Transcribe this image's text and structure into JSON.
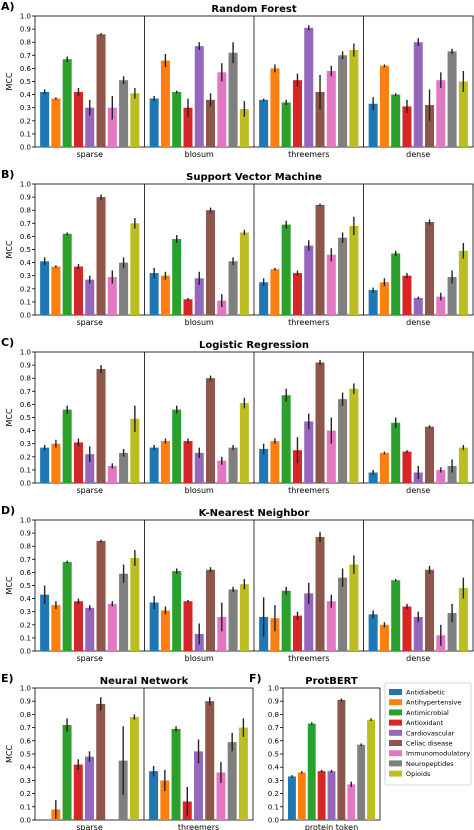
{
  "categories": [
    "Antidiabetic",
    "Antihypertensive",
    "Antimicrobial",
    "Antioxidant",
    "Cardiovascular",
    "Celiac disease",
    "Immunomodulatory",
    "Neuropeptides",
    "Opioids"
  ],
  "colors": [
    "#1f77b4",
    "#ff7f0e",
    "#2ca02c",
    "#d62728",
    "#9467bd",
    "#8c564b",
    "#e377c2",
    "#7f7f7f",
    "#bcbd22"
  ],
  "chart_data": [
    {
      "panel": "A)",
      "type": "bar",
      "title": "Random Forest",
      "ylabel": "MCC",
      "ylim": [
        0,
        1.0
      ],
      "yticks": [
        "0.0",
        "0.1",
        "0.2",
        "0.3",
        "0.4",
        "0.5",
        "0.6",
        "0.7",
        "0.8",
        "0.9",
        "1.0"
      ],
      "groups": [
        {
          "name": "sparse",
          "values": [
            0.42,
            0.37,
            0.67,
            0.42,
            0.3,
            0.86,
            0.3,
            0.51,
            0.41
          ],
          "err": [
            0.02,
            0.01,
            0.02,
            0.03,
            0.06,
            0.01,
            0.09,
            0.03,
            0.04
          ]
        },
        {
          "name": "blosum",
          "values": [
            0.37,
            0.66,
            0.42,
            0.3,
            0.77,
            0.36,
            0.57,
            0.72,
            0.29
          ],
          "err": [
            0.02,
            0.05,
            0.01,
            0.07,
            0.03,
            0.05,
            0.07,
            0.08,
            0.06
          ]
        },
        {
          "name": "threemers",
          "values": [
            0.36,
            0.6,
            0.34,
            0.51,
            0.91,
            0.42,
            0.58,
            0.7,
            0.74
          ],
          "err": [
            0.01,
            0.03,
            0.02,
            0.05,
            0.02,
            0.13,
            0.04,
            0.03,
            0.05
          ]
        },
        {
          "name": "dense",
          "values": [
            0.33,
            0.62,
            0.4,
            0.31,
            0.8,
            0.32,
            0.51,
            0.73,
            0.5
          ],
          "err": [
            0.05,
            0.01,
            0.01,
            0.05,
            0.03,
            0.12,
            0.06,
            0.02,
            0.08
          ]
        }
      ]
    },
    {
      "panel": "B)",
      "type": "bar",
      "title": "Support Vector Machine",
      "ylabel": "MCC",
      "ylim": [
        0,
        1.0
      ],
      "yticks": [
        "0.0",
        "0.1",
        "0.2",
        "0.3",
        "0.4",
        "0.5",
        "0.6",
        "0.7",
        "0.8",
        "0.9",
        "1.0"
      ],
      "groups": [
        {
          "name": "sparse",
          "values": [
            0.41,
            0.37,
            0.62,
            0.37,
            0.27,
            0.9,
            0.29,
            0.4,
            0.7
          ],
          "err": [
            0.03,
            0.01,
            0.01,
            0.02,
            0.03,
            0.02,
            0.05,
            0.04,
            0.04
          ]
        },
        {
          "name": "blosum",
          "values": [
            0.32,
            0.3,
            0.58,
            0.12,
            0.28,
            0.8,
            0.11,
            0.41,
            0.63
          ],
          "err": [
            0.04,
            0.03,
            0.03,
            0.01,
            0.05,
            0.02,
            0.05,
            0.03,
            0.02
          ]
        },
        {
          "name": "threemers",
          "values": [
            0.25,
            0.35,
            0.69,
            0.32,
            0.53,
            0.84,
            0.46,
            0.59,
            0.68
          ],
          "err": [
            0.03,
            0.01,
            0.03,
            0.02,
            0.04,
            0.01,
            0.05,
            0.04,
            0.07
          ]
        },
        {
          "name": "dense",
          "values": [
            0.19,
            0.25,
            0.47,
            0.3,
            0.13,
            0.71,
            0.14,
            0.29,
            0.49
          ],
          "err": [
            0.02,
            0.03,
            0.02,
            0.02,
            0.01,
            0.02,
            0.03,
            0.05,
            0.06
          ]
        }
      ]
    },
    {
      "panel": "C)",
      "type": "bar",
      "title": "Logistic Regression",
      "ylabel": "MCC",
      "ylim": [
        0,
        1.0
      ],
      "yticks": [
        "0.0",
        "0.1",
        "0.2",
        "0.3",
        "0.4",
        "0.5",
        "0.6",
        "0.7",
        "0.8",
        "0.9",
        "1.0"
      ],
      "groups": [
        {
          "name": "sparse",
          "values": [
            0.27,
            0.3,
            0.56,
            0.31,
            0.22,
            0.87,
            0.13,
            0.23,
            0.49
          ],
          "err": [
            0.02,
            0.03,
            0.03,
            0.03,
            0.06,
            0.03,
            0.02,
            0.03,
            0.1
          ]
        },
        {
          "name": "blosum",
          "values": [
            0.27,
            0.32,
            0.56,
            0.32,
            0.23,
            0.8,
            0.17,
            0.27,
            0.61
          ],
          "err": [
            0.02,
            0.02,
            0.03,
            0.02,
            0.04,
            0.02,
            0.03,
            0.02,
            0.04
          ]
        },
        {
          "name": "threemers",
          "values": [
            0.26,
            0.32,
            0.67,
            0.25,
            0.47,
            0.92,
            0.4,
            0.64,
            0.72
          ],
          "err": [
            0.04,
            0.02,
            0.05,
            0.1,
            0.06,
            0.02,
            0.1,
            0.05,
            0.04
          ]
        },
        {
          "name": "dense",
          "values": [
            0.08,
            0.23,
            0.46,
            0.24,
            0.08,
            0.43,
            0.1,
            0.13,
            0.27
          ],
          "err": [
            0.02,
            0.01,
            0.04,
            0.01,
            0.05,
            0.01,
            0.02,
            0.05,
            0.02
          ]
        }
      ]
    },
    {
      "panel": "D)",
      "type": "bar",
      "title": "K-Nearest Neighbor",
      "ylabel": "MCC",
      "ylim": [
        0,
        1.0
      ],
      "yticks": [
        "0.0",
        "0.1",
        "0.2",
        "0.3",
        "0.4",
        "0.5",
        "0.6",
        "0.7",
        "0.8",
        "0.9",
        "1.0"
      ],
      "groups": [
        {
          "name": "sparse",
          "values": [
            0.43,
            0.35,
            0.68,
            0.38,
            0.33,
            0.84,
            0.36,
            0.59,
            0.71
          ],
          "err": [
            0.07,
            0.03,
            0.01,
            0.02,
            0.02,
            0.01,
            0.02,
            0.07,
            0.06
          ]
        },
        {
          "name": "blosum",
          "values": [
            0.37,
            0.31,
            0.61,
            0.38,
            0.13,
            0.62,
            0.26,
            0.47,
            0.51
          ],
          "err": [
            0.05,
            0.03,
            0.02,
            0.01,
            0.08,
            0.02,
            0.11,
            0.02,
            0.04
          ]
        },
        {
          "name": "threemers",
          "values": [
            0.26,
            0.25,
            0.46,
            0.27,
            0.44,
            0.87,
            0.38,
            0.56,
            0.66
          ],
          "err": [
            0.15,
            0.1,
            0.03,
            0.03,
            0.08,
            0.04,
            0.05,
            0.07,
            0.07
          ]
        },
        {
          "name": "dense",
          "values": [
            0.28,
            0.2,
            0.54,
            0.34,
            0.26,
            0.62,
            0.12,
            0.29,
            0.48
          ],
          "err": [
            0.03,
            0.02,
            0.01,
            0.02,
            0.04,
            0.03,
            0.08,
            0.07,
            0.08
          ]
        }
      ]
    },
    {
      "panel": "E)",
      "type": "bar",
      "title": "Neural Network",
      "ylabel": "MCC",
      "ylim": [
        0,
        1.0
      ],
      "yticks": [
        "0.0",
        "0.1",
        "0.2",
        "0.3",
        "0.4",
        "0.5",
        "0.6",
        "0.7",
        "0.8",
        "0.9",
        "1.0"
      ],
      "groups": [
        {
          "name": "sparse",
          "values": [
            0.0,
            0.08,
            0.72,
            0.42,
            0.48,
            0.88,
            0.0,
            0.45,
            0.78
          ],
          "err": [
            0.0,
            0.07,
            0.05,
            0.04,
            0.04,
            0.05,
            0.0,
            0.26,
            0.02
          ]
        },
        {
          "name": "threemers",
          "values": [
            0.37,
            0.3,
            0.69,
            0.14,
            0.52,
            0.9,
            0.36,
            0.59,
            0.7
          ],
          "err": [
            0.04,
            0.08,
            0.02,
            0.11,
            0.09,
            0.03,
            0.08,
            0.07,
            0.07
          ]
        }
      ]
    },
    {
      "panel": "F)",
      "type": "bar",
      "title": "ProtBERT",
      "ylabel": "",
      "ylim": [
        0,
        1.0
      ],
      "yticks": [
        "0.0",
        "0.1",
        "0.2",
        "0.3",
        "0.4",
        "0.5",
        "0.6",
        "0.7",
        "0.8",
        "0.9",
        "1.0"
      ],
      "groups": [
        {
          "name": "protein_token",
          "values": [
            0.33,
            0.36,
            0.73,
            0.37,
            0.37,
            0.91,
            0.27,
            0.57,
            0.76
          ],
          "err": [
            0.01,
            0.01,
            0.01,
            0.01,
            0.01,
            0.01,
            0.02,
            0.01,
            0.01
          ]
        }
      ]
    }
  ]
}
